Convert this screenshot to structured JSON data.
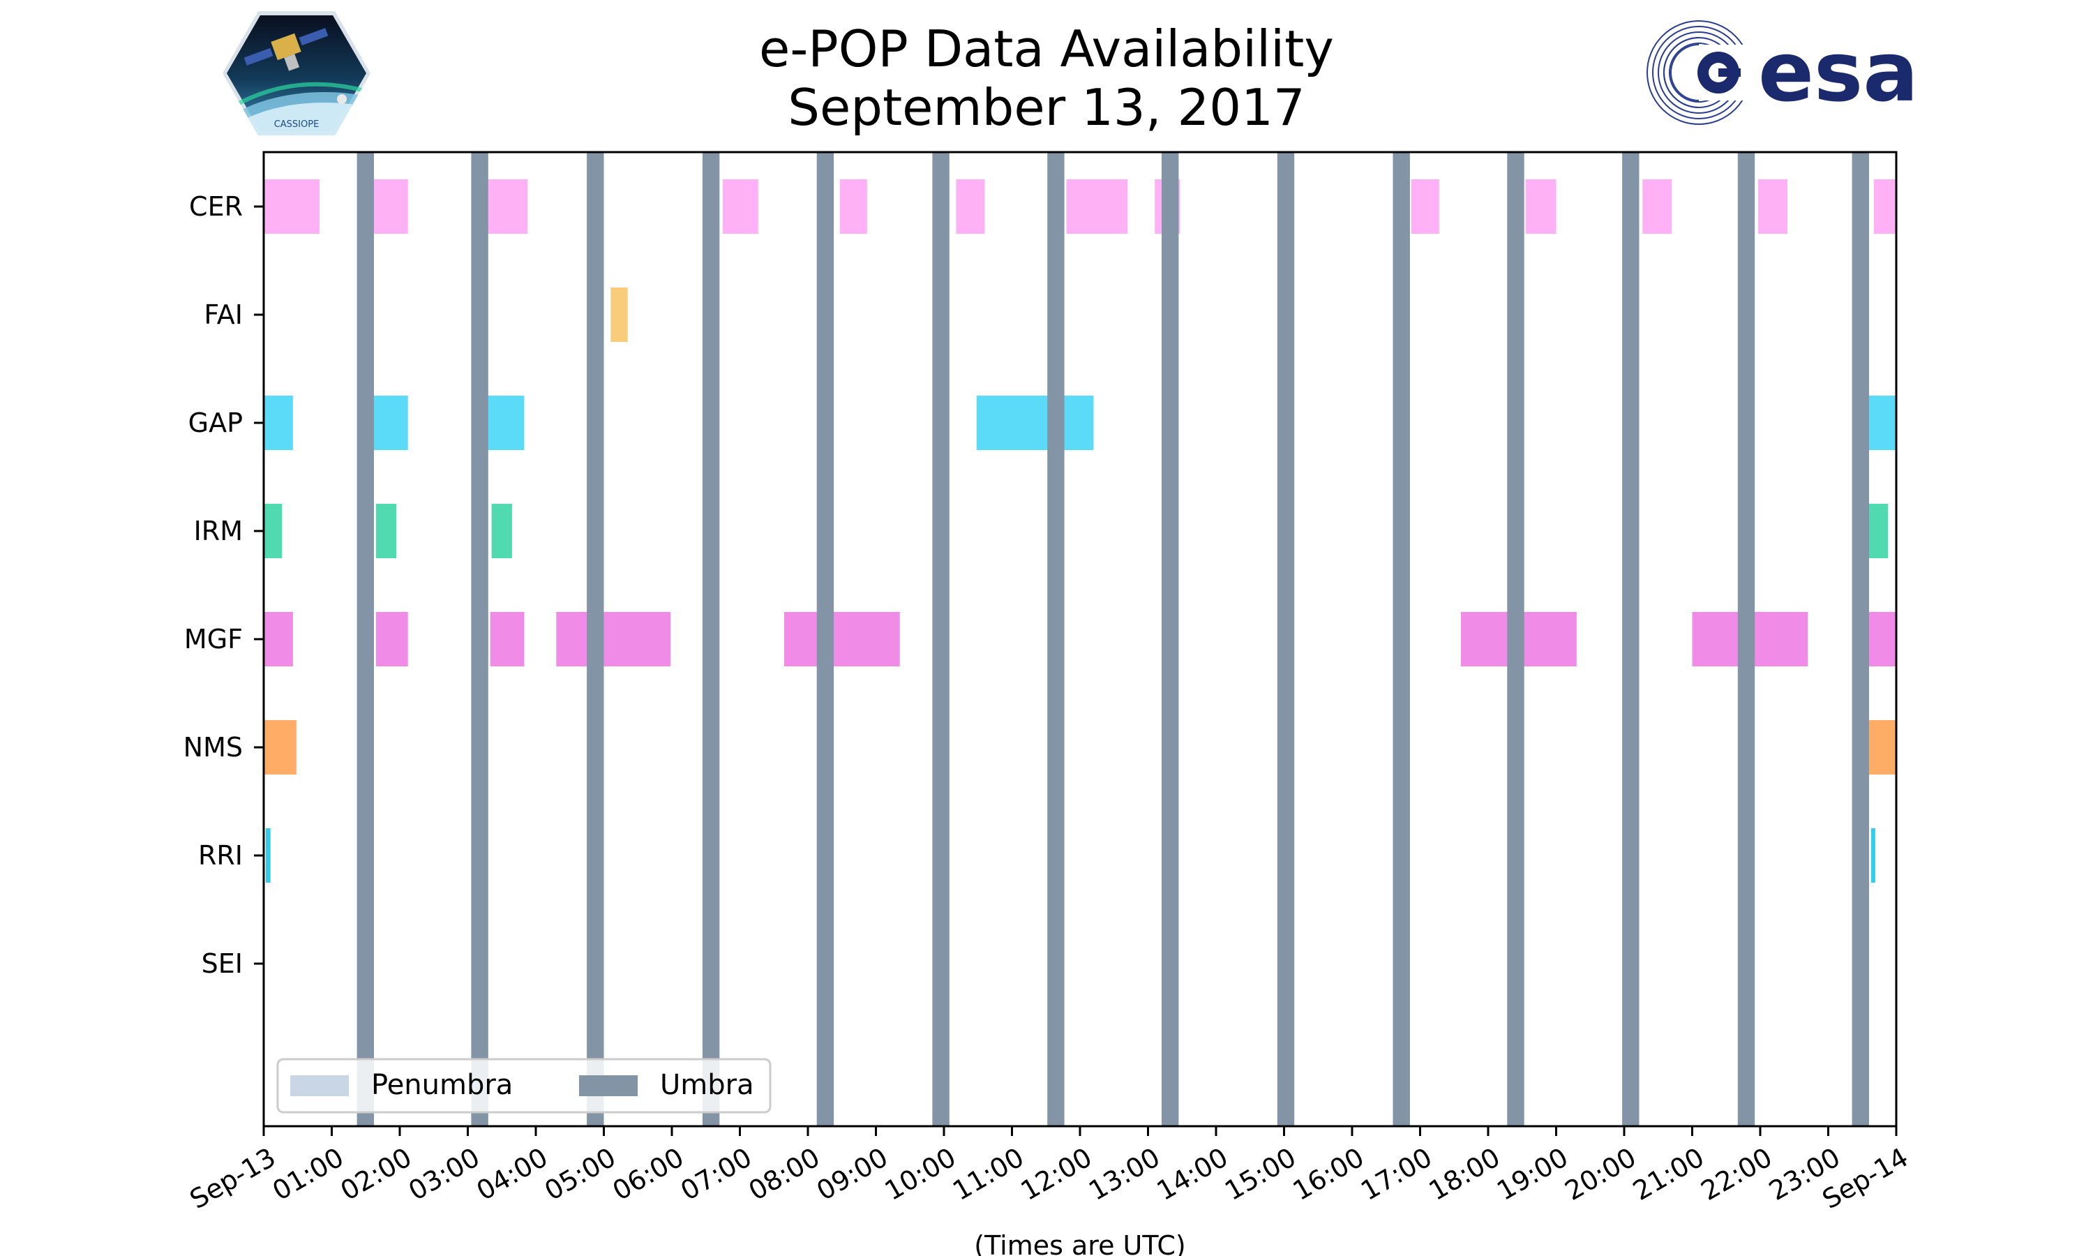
{
  "title_line1": "e-POP Data Availability",
  "title_line2": "September 13, 2017",
  "logos": {
    "left_logo_text": "CASSIOPE",
    "right_logo_text": "esa",
    "left_bg": "#ffffff",
    "right_color": "#1a2a6c"
  },
  "colors": {
    "umbra": "#8294a6",
    "penumbra": "#c8d6e6",
    "CER": "#ffa8f5",
    "FAI": "#f8c76d",
    "GAP": "#4ad7f8",
    "IRM": "#3ed6a6",
    "MGF": "#f07ee6",
    "NMS": "#ffa357",
    "RRI": "#1fc7e8",
    "SEI": "#aaaaaa"
  },
  "chart_data": {
    "type": "gantt",
    "title": "e-POP Data Availability September 13, 2017",
    "xlabel": "(Times are UTC)",
    "x_unit": "hours since 2017-09-13 00:00 UTC",
    "xlim": [
      0,
      24
    ],
    "x_tick_values": [
      0,
      1,
      2,
      3,
      4,
      5,
      6,
      7,
      8,
      9,
      10,
      11,
      12,
      13,
      14,
      15,
      16,
      17,
      18,
      19,
      20,
      21,
      22,
      23,
      24
    ],
    "x_tick_labels": [
      "Sep-13",
      "01:00",
      "02:00",
      "03:00",
      "04:00",
      "05:00",
      "06:00",
      "07:00",
      "08:00",
      "09:00",
      "10:00",
      "11:00",
      "12:00",
      "13:00",
      "14:00",
      "15:00",
      "16:00",
      "17:00",
      "18:00",
      "19:00",
      "20:00",
      "21:00",
      "22:00",
      "23:00",
      "Sep-14"
    ],
    "instruments": [
      "CER",
      "FAI",
      "GAP",
      "IRM",
      "MGF",
      "NMS",
      "RRI",
      "SEI"
    ],
    "availability": {
      "CER": [
        [
          0.0,
          0.82
        ],
        [
          1.58,
          2.12
        ],
        [
          3.12,
          3.88
        ],
        [
          6.75,
          7.27
        ],
        [
          8.47,
          8.87
        ],
        [
          10.18,
          10.6
        ],
        [
          11.8,
          12.7
        ],
        [
          13.1,
          13.47
        ],
        [
          16.87,
          17.28
        ],
        [
          18.55,
          19.0
        ],
        [
          20.27,
          20.7
        ],
        [
          21.97,
          22.4
        ],
        [
          23.67,
          24.0
        ]
      ],
      "FAI": [
        [
          5.1,
          5.35
        ]
      ],
      "GAP": [
        [
          0.0,
          0.43
        ],
        [
          1.52,
          2.12
        ],
        [
          3.2,
          3.83
        ],
        [
          10.48,
          12.2
        ],
        [
          23.45,
          24.0
        ]
      ],
      "IRM": [
        [
          0.0,
          0.27
        ],
        [
          1.65,
          1.95
        ],
        [
          3.35,
          3.65
        ],
        [
          23.6,
          23.88
        ]
      ],
      "MGF": [
        [
          0.0,
          0.43
        ],
        [
          1.65,
          2.12
        ],
        [
          3.33,
          3.83
        ],
        [
          4.3,
          5.98
        ],
        [
          7.65,
          9.35
        ],
        [
          17.6,
          19.3
        ],
        [
          21.0,
          22.7
        ],
        [
          23.58,
          24.0
        ]
      ],
      "NMS": [
        [
          0.0,
          0.48
        ],
        [
          23.42,
          24.0
        ]
      ],
      "RRI": [
        [
          0.03,
          0.1
        ],
        [
          23.63,
          23.69
        ]
      ],
      "SEI": []
    },
    "umbra_intervals": [
      [
        1.37,
        1.62
      ],
      [
        3.05,
        3.3
      ],
      [
        4.75,
        5.0
      ],
      [
        6.45,
        6.7
      ],
      [
        8.13,
        8.38
      ],
      [
        9.83,
        10.08
      ],
      [
        11.52,
        11.77
      ],
      [
        13.2,
        13.45
      ],
      [
        14.9,
        15.15
      ],
      [
        16.6,
        16.85
      ],
      [
        18.28,
        18.53
      ],
      [
        19.97,
        20.22
      ],
      [
        21.67,
        21.92
      ],
      [
        23.35,
        23.6
      ]
    ],
    "penumbra_intervals": [],
    "legend": {
      "position": "lower-left",
      "entries": [
        {
          "label": "Penumbra",
          "series": "penumbra"
        },
        {
          "label": "Umbra",
          "series": "umbra"
        }
      ]
    }
  }
}
